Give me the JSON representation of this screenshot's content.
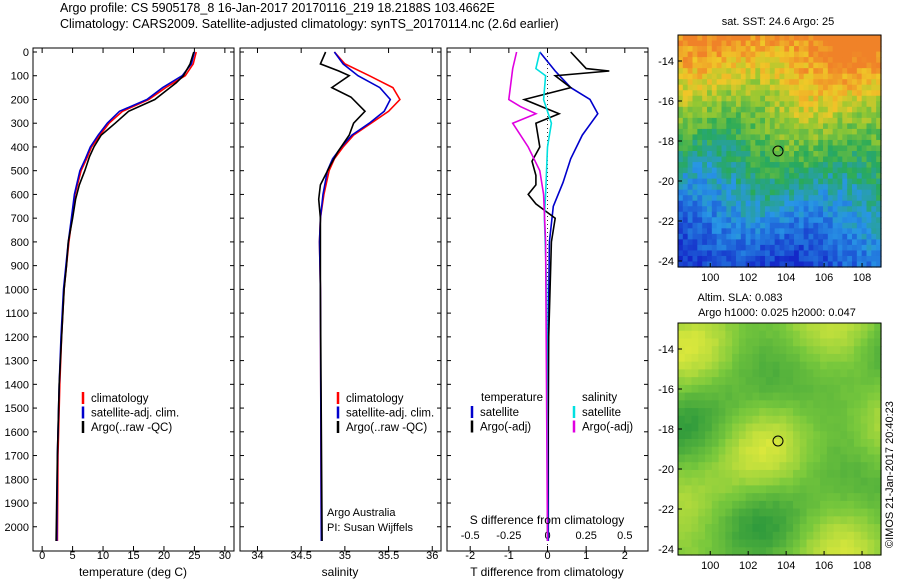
{
  "header": {
    "line1": "Argo profile: CS 5905178_8 16-Jan-2017 20170116_219 18.2188S 103.4662E",
    "line2": "Climatology: CARS2009. Satellite-adjusted climatology: synTS_20170114.nc (2.6d earlier)"
  },
  "colors": {
    "climatology": "#ff0000",
    "satellite": "#0000cc",
    "argo": "#000000",
    "sat_s": "#00e0e0",
    "argo_s": "#e000e0"
  },
  "chart_data": [
    {
      "type": "line",
      "id": "temperature",
      "xlabel": "temperature (deg C)",
      "ylabel": "",
      "xlim": [
        -1.5,
        31.5
      ],
      "ylim": [
        2060,
        0
      ],
      "xticks": [
        0,
        5,
        10,
        15,
        20,
        25,
        30
      ],
      "yticks": [
        0,
        100,
        200,
        300,
        400,
        500,
        600,
        700,
        800,
        900,
        1000,
        1100,
        1200,
        1300,
        1400,
        1500,
        1600,
        1700,
        1800,
        1900,
        2000
      ],
      "legend": [
        "climatology",
        "satellite-adj. clim.",
        "Argo(..raw -QC)"
      ],
      "series": [
        {
          "name": "climatology",
          "color": "#ff0000",
          "x": [
            25.3,
            24.8,
            23.5,
            20.3,
            17.5,
            13.2,
            11.0,
            9.5,
            8.1,
            7.3,
            6.4,
            5.4,
            4.9,
            4.4,
            4.0,
            3.6,
            3.2,
            2.9,
            2.6,
            2.5
          ],
          "y": [
            0,
            50,
            100,
            150,
            200,
            250,
            300,
            350,
            400,
            450,
            500,
            600,
            700,
            800,
            900,
            1000,
            1200,
            1400,
            1700,
            2060
          ]
        },
        {
          "name": "satellite-adj. clim.",
          "color": "#0000cc",
          "x": [
            25.0,
            24.5,
            23.0,
            19.8,
            17.2,
            12.7,
            10.7,
            9.2,
            7.9,
            7.1,
            6.2,
            5.3,
            4.8,
            4.3,
            3.9,
            3.5,
            3.1,
            2.8,
            2.5,
            2.4
          ],
          "y": [
            0,
            50,
            100,
            150,
            200,
            250,
            300,
            350,
            400,
            450,
            500,
            600,
            700,
            800,
            900,
            1000,
            1200,
            1400,
            1700,
            2060
          ]
        },
        {
          "name": "Argo(..raw -QC)",
          "color": "#000000",
          "x": [
            24.9,
            24.3,
            23.2,
            22.0,
            20.5,
            18.5,
            14.2,
            12.0,
            9.7,
            8.5,
            7.8,
            7.0,
            6.1,
            5.5,
            5.0,
            4.3,
            4.0,
            3.6,
            3.2,
            2.8,
            2.5,
            2.3
          ],
          "y": [
            0,
            50,
            100,
            130,
            160,
            200,
            250,
            300,
            350,
            400,
            440,
            500,
            560,
            620,
            700,
            800,
            900,
            1000,
            1200,
            1400,
            1700,
            2060
          ]
        }
      ]
    },
    {
      "type": "line",
      "id": "salinity",
      "xlabel": "salinity",
      "ylabel": "",
      "xlim": [
        33.8,
        36.1
      ],
      "ylim": [
        2060,
        0
      ],
      "xticks": [
        34,
        34.5,
        35,
        35.5,
        36
      ],
      "legend": [
        "climatology",
        "satellite-adj. clim.",
        "Argo(..raw -QC)"
      ],
      "annotation": [
        "Argo Australia",
        "PI: Susan Wijffels"
      ],
      "series": [
        {
          "name": "climatology",
          "color": "#ff0000",
          "x": [
            34.88,
            35.0,
            35.28,
            35.55,
            35.63,
            35.5,
            35.3,
            35.1,
            34.98,
            34.88,
            34.82,
            34.76,
            34.72,
            34.71,
            34.72,
            34.73
          ],
          "y": [
            0,
            50,
            100,
            150,
            200,
            250,
            300,
            350,
            400,
            450,
            500,
            600,
            700,
            800,
            1000,
            2060
          ]
        },
        {
          "name": "satellite-adj. clim.",
          "color": "#0000cc",
          "x": [
            34.88,
            34.98,
            35.15,
            35.4,
            35.52,
            35.45,
            35.28,
            35.08,
            34.96,
            34.86,
            34.8,
            34.75,
            34.72,
            34.71,
            34.72,
            34.73
          ],
          "y": [
            0,
            50,
            100,
            150,
            200,
            250,
            300,
            350,
            400,
            450,
            500,
            600,
            700,
            800,
            1000,
            2060
          ]
        },
        {
          "name": "Argo(..raw -QC)",
          "color": "#000000",
          "x": [
            34.78,
            34.72,
            34.93,
            35.05,
            34.85,
            35.07,
            35.23,
            35.1,
            35.05,
            34.92,
            34.83,
            34.72,
            34.7,
            34.72,
            34.72,
            34.74
          ],
          "y": [
            0,
            50,
            80,
            100,
            150,
            190,
            250,
            300,
            350,
            420,
            480,
            560,
            620,
            700,
            1000,
            2060
          ]
        }
      ]
    },
    {
      "type": "line",
      "id": "difference",
      "xlabel": "T difference from climatology",
      "xlabel_top": "S difference from climatology",
      "xlim": [
        -2.6,
        2.6
      ],
      "ylim": [
        2060,
        0
      ],
      "xticks_bottom": [
        -2,
        -1,
        0,
        1,
        2
      ],
      "xticks_top": [
        "-0.5",
        "-0.25",
        "0",
        "0.25",
        "0.5"
      ],
      "legend_titles": [
        "temperature",
        "salinity"
      ],
      "legend": [
        "satellite",
        "Argo(-adj)",
        "satellite",
        "Argo(-adj)"
      ],
      "series": [
        {
          "name": "T satellite",
          "color": "#0000cc",
          "x": [
            -0.2,
            0.2,
            0.6,
            1.1,
            1.3,
            0.9,
            0.6,
            0.4,
            0.15,
            0.05,
            0.02,
            0.02
          ],
          "y": [
            0,
            80,
            150,
            200,
            260,
            350,
            450,
            550,
            650,
            800,
            1200,
            2060
          ]
        },
        {
          "name": "T Argo(-adj)",
          "color": "#000000",
          "x": [
            0.6,
            1.0,
            1.6,
            0.2,
            0.6,
            -0.6,
            0.3,
            -0.3,
            -0.2,
            -0.4,
            -0.3,
            -0.3,
            -0.5,
            -0.3,
            0.2,
            0.1,
            0.03,
            0.0
          ],
          "y": [
            0,
            70,
            80,
            100,
            150,
            200,
            260,
            300,
            400,
            460,
            520,
            560,
            600,
            640,
            700,
            800,
            1200,
            2060
          ]
        },
        {
          "name": "S satellite",
          "color": "#00e0e0",
          "x": [
            -0.2,
            -0.3,
            -0.05,
            -0.1,
            0.1,
            0.0,
            -0.05,
            -0.08,
            -0.02,
            0.0
          ],
          "y": [
            0,
            70,
            100,
            200,
            300,
            400,
            600,
            700,
            1000,
            2060
          ]
        },
        {
          "name": "S Argo(-adj)",
          "color": "#e000e0",
          "x": [
            -0.8,
            -0.9,
            -1.0,
            -0.7,
            -0.3,
            -0.9,
            -0.5,
            -0.2,
            -0.1,
            -0.05,
            0.0
          ],
          "y": [
            0,
            70,
            200,
            230,
            260,
            300,
            400,
            500,
            600,
            800,
            2060
          ]
        }
      ]
    },
    {
      "type": "heatmap",
      "id": "sst-map",
      "title": "sat. SST: 24.6 Argo: 25",
      "xticks": [
        100,
        102,
        104,
        106,
        108
      ],
      "yticks": [
        -14,
        -16,
        -18,
        -20,
        -22,
        -24
      ],
      "xlim": [
        98.3,
        109
      ],
      "ylim": [
        -24.3,
        -12.7
      ],
      "marker": {
        "lon": 103.47,
        "lat": -18.22
      }
    },
    {
      "type": "heatmap",
      "id": "sla-map",
      "title": "Altim. SLA: 0.083",
      "subtitle": "Argo h1000: 0.025 h2000: 0.047",
      "xticks": [
        100,
        102,
        104,
        106,
        108
      ],
      "yticks": [
        -14,
        -16,
        -18,
        -20,
        -22,
        -24
      ],
      "xlim": [
        98.3,
        109
      ],
      "ylim": [
        -24.3,
        -12.7
      ],
      "marker": {
        "lon": 103.47,
        "lat": -18.22
      }
    }
  ],
  "footer": {
    "stamp": "©IMOS 21-Jan-2017 20:40:23"
  }
}
